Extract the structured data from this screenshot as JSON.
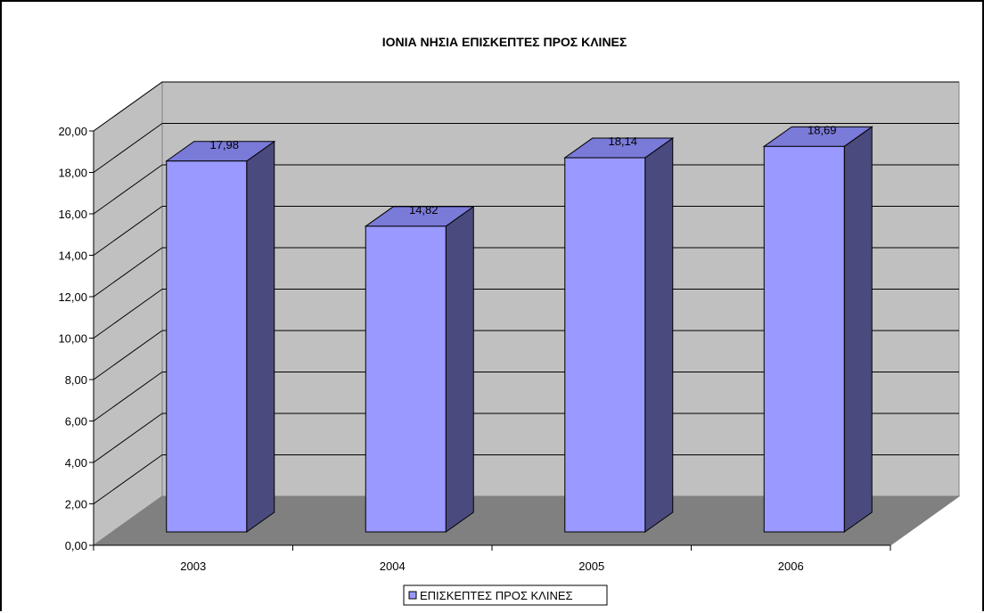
{
  "chart_data": {
    "type": "bar",
    "title": "ΙΟΝΙΑ ΝΗΣΙΑ ΕΠΙΣΚΕΠΤΕΣ ΠΡΟΣ ΚΛΙΝΕΣ",
    "categories": [
      "2003",
      "2004",
      "2005",
      "2006"
    ],
    "series": [
      {
        "name": "ΕΠΙΣΚΕΠΤΕΣ ΠΡΟΣ ΚΛΙΝΕΣ",
        "values": [
          17.98,
          14.82,
          18.14,
          18.69
        ],
        "value_labels": [
          "17,98",
          "14,82",
          "18,14",
          "18,69"
        ]
      }
    ],
    "y_ticks": [
      "0,00",
      "2,00",
      "4,00",
      "6,00",
      "8,00",
      "10,00",
      "12,00",
      "14,00",
      "16,00",
      "18,00",
      "20,00"
    ],
    "ylim": [
      0,
      20
    ],
    "grid": true,
    "three_d": true,
    "legend": "bottom",
    "colors": {
      "bar_front": "#9999ff",
      "bar_side": "#4a4a7e",
      "bar_top": "#7a7ad9",
      "back_wall": "#c0c0c0",
      "side_wall": "#c0c0c0",
      "floor": "#808080"
    }
  }
}
